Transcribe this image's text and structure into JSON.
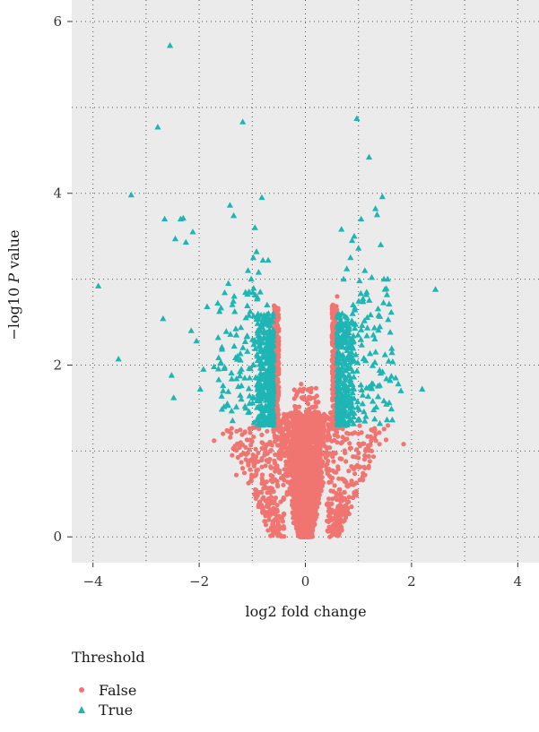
{
  "chart_data": {
    "type": "scatter",
    "xlabel": "log2 fold change",
    "ylabel_prefix": "−log10 ",
    "ylabel_italic": "P",
    "ylabel_suffix": " value",
    "xlim": [
      -4.4,
      4.4
    ],
    "ylim": [
      -0.3,
      6.25
    ],
    "x_ticks": [
      -4,
      -2,
      0,
      2,
      4
    ],
    "x_tick_labels": [
      "−4",
      "−2",
      "0",
      "2",
      "4"
    ],
    "y_ticks": [
      0,
      2,
      4,
      6
    ],
    "y_tick_labels": [
      "0",
      "2",
      "4",
      "6"
    ],
    "grid": true,
    "legend": {
      "title": "Threshold",
      "position": "bottom-left",
      "entries": [
        {
          "label": "False",
          "marker": "circle",
          "color": "#f07470"
        },
        {
          "label": "True",
          "marker": "triangle",
          "color": "#1fb5b5"
        }
      ]
    },
    "series": [
      {
        "name": "False",
        "marker": "circle",
        "color": "#f07470",
        "description": "dense cloud of non-significant genes centred at 0, spreading to about ±1.2 near the base and narrowing upward, maximum around 2.8",
        "points": [
          [
            -1.72,
            1.12
          ],
          [
            -1.55,
            1.2
          ],
          [
            -1.38,
            0.95
          ],
          [
            -1.3,
            0.72
          ],
          [
            -1.12,
            0.9
          ],
          [
            -1.05,
            1.26
          ],
          [
            -0.9,
            0.48
          ],
          [
            -0.82,
            1.1
          ],
          [
            -0.7,
            0.35
          ],
          [
            -0.65,
            1.3
          ],
          [
            1.85,
            1.08
          ],
          [
            1.52,
            1.13
          ],
          [
            1.33,
            1.12
          ],
          [
            1.12,
            0.8
          ],
          [
            1.0,
            0.92
          ],
          [
            0.92,
            0.5
          ],
          [
            0.82,
            1.2
          ],
          [
            0.7,
            0.35
          ],
          [
            0.6,
            2.8
          ],
          [
            0.62,
            2.6
          ],
          [
            0.64,
            2.4
          ],
          [
            -0.58,
            2.1
          ],
          [
            -0.62,
            1.9
          ],
          [
            -0.55,
            2.3
          ],
          [
            -0.12,
            1.7
          ],
          [
            0.1,
            1.62
          ],
          [
            -0.08,
            1.78
          ],
          [
            0.05,
            1.55
          ],
          [
            -1.22,
            1.1
          ],
          [
            1.25,
            1.0
          ]
        ]
      },
      {
        "name": "True",
        "marker": "triangle",
        "color": "#1fb5b5",
        "description": "significant genes with |log2 fold change| > ~0.58 and −log10 P above ~1.3, forming two arms",
        "points": [
          [
            -3.9,
            2.92
          ],
          [
            -3.52,
            2.07
          ],
          [
            -3.28,
            3.98
          ],
          [
            -2.78,
            4.77
          ],
          [
            -2.68,
            2.54
          ],
          [
            -2.65,
            3.7
          ],
          [
            -2.55,
            5.72
          ],
          [
            -2.52,
            1.88
          ],
          [
            -2.48,
            1.62
          ],
          [
            -2.45,
            3.47
          ],
          [
            -2.35,
            3.7
          ],
          [
            -2.3,
            3.71
          ],
          [
            -2.25,
            3.43
          ],
          [
            -2.15,
            2.4
          ],
          [
            -2.12,
            3.55
          ],
          [
            -2.05,
            2.28
          ],
          [
            -1.98,
            1.72
          ],
          [
            -1.92,
            1.95
          ],
          [
            -1.85,
            2.68
          ],
          [
            -1.72,
            1.98
          ],
          [
            -1.65,
            2.72
          ],
          [
            -1.6,
            2.02
          ],
          [
            -1.55,
            1.7
          ],
          [
            -1.45,
            2.95
          ],
          [
            -1.42,
            3.86
          ],
          [
            -1.35,
            3.74
          ],
          [
            -1.3,
            2.35
          ],
          [
            -1.18,
            4.83
          ],
          [
            -1.12,
            2.55
          ],
          [
            -1.08,
            3.1
          ],
          [
            -1.05,
            1.85
          ],
          [
            -1.02,
            3.0
          ],
          [
            -0.98,
            3.25
          ],
          [
            -0.95,
            3.6
          ],
          [
            -0.92,
            3.32
          ],
          [
            -0.88,
            3.08
          ],
          [
            -0.85,
            2.85
          ],
          [
            -0.82,
            3.95
          ],
          [
            -0.8,
            3.22
          ],
          [
            -0.78,
            2.58
          ],
          [
            -0.75,
            2.15
          ],
          [
            -0.72,
            2.7
          ],
          [
            -0.7,
            3.22
          ],
          [
            -0.68,
            1.52
          ],
          [
            -0.65,
            2.32
          ],
          [
            -0.62,
            1.78
          ],
          [
            -0.6,
            1.4
          ],
          [
            0.6,
            1.42
          ],
          [
            0.62,
            2.05
          ],
          [
            0.65,
            2.55
          ],
          [
            0.68,
            3.58
          ],
          [
            0.72,
            3.0
          ],
          [
            0.75,
            2.28
          ],
          [
            0.78,
            3.12
          ],
          [
            0.82,
            2.45
          ],
          [
            0.85,
            3.25
          ],
          [
            0.88,
            3.45
          ],
          [
            0.9,
            2.7
          ],
          [
            0.92,
            3.5
          ],
          [
            0.95,
            2.12
          ],
          [
            0.97,
            4.87
          ],
          [
            1.0,
            3.36
          ],
          [
            1.02,
            2.98
          ],
          [
            1.05,
            3.7
          ],
          [
            1.08,
            1.65
          ],
          [
            1.12,
            3.1
          ],
          [
            1.15,
            2.82
          ],
          [
            1.2,
            4.42
          ],
          [
            1.25,
            3.02
          ],
          [
            1.28,
            2.35
          ],
          [
            1.32,
            3.82
          ],
          [
            1.35,
            3.75
          ],
          [
            1.38,
            2.58
          ],
          [
            1.42,
            3.4
          ],
          [
            1.45,
            3.96
          ],
          [
            1.48,
            3.0
          ],
          [
            1.5,
            2.12
          ],
          [
            1.55,
            3.0
          ],
          [
            1.62,
            1.87
          ],
          [
            1.7,
            1.85
          ],
          [
            1.75,
            1.78
          ],
          [
            1.8,
            1.7
          ],
          [
            2.2,
            1.72
          ],
          [
            2.45,
            2.88
          ]
        ]
      }
    ]
  }
}
